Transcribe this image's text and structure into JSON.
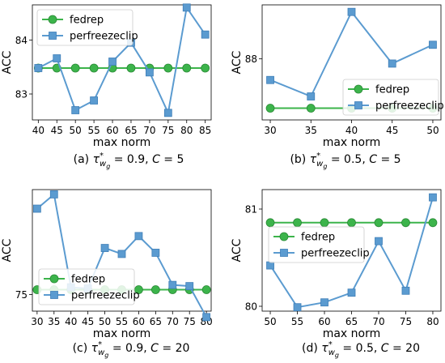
{
  "colors": {
    "fedrep": "#3cb44b",
    "fedrep_edge": "#2a8a36",
    "perfreezeclip": "#5b9bd0",
    "perfreezeclip_edge": "#3f7fb8"
  },
  "chart_data": [
    {
      "type": "line",
      "caption": "(a) τ*_{w_g} = 0.9, C = 5",
      "xlabel": "max norm",
      "ylabel": "ACC",
      "x": [
        40,
        45,
        50,
        55,
        60,
        65,
        70,
        75,
        80,
        85
      ],
      "xticks": [
        "40",
        "45",
        "50",
        "55",
        "60",
        "65",
        "70",
        "75",
        "80",
        "85"
      ],
      "yticks": [
        {
          "value": 83,
          "label": "83"
        },
        {
          "value": 84,
          "label": "84"
        }
      ],
      "ylim": [
        82.52,
        84.65
      ],
      "legend_position": "top-left",
      "series": [
        {
          "name": "fedrep",
          "marker": "circle",
          "values": [
            83.48,
            83.48,
            83.48,
            83.48,
            83.48,
            83.48,
            83.48,
            83.48,
            83.48,
            83.48
          ]
        },
        {
          "name": "perfreezeclip",
          "marker": "square",
          "values": [
            83.48,
            83.66,
            82.7,
            82.88,
            83.6,
            83.95,
            83.4,
            82.65,
            84.6,
            84.1
          ]
        }
      ]
    },
    {
      "type": "line",
      "caption": "(b) τ*_{w_g} = 0.5, C = 5",
      "xlabel": "max norm",
      "ylabel": "ACC",
      "x": [
        30,
        35,
        40,
        45,
        50
      ],
      "xticks": [
        "30",
        "35",
        "40",
        "45",
        "50"
      ],
      "yticks": [
        {
          "value": 88,
          "label": "88"
        }
      ],
      "ylim": [
        86.7,
        89.15
      ],
      "legend_position": "bottom-right",
      "series": [
        {
          "name": "fedrep",
          "marker": "circle",
          "values": [
            86.95,
            86.95,
            86.95,
            86.95,
            86.95
          ]
        },
        {
          "name": "perfreezeclip",
          "marker": "square",
          "values": [
            87.55,
            87.2,
            89.0,
            87.9,
            88.3
          ]
        }
      ]
    },
    {
      "type": "line",
      "caption": "(c) τ*_{w_g} = 0.9, C = 20",
      "xlabel": "max norm",
      "ylabel": "ACC",
      "x": [
        30,
        35,
        40,
        45,
        50,
        55,
        60,
        65,
        70,
        75,
        80
      ],
      "xticks": [
        "30",
        "35",
        "40",
        "45",
        "50",
        "55",
        "60",
        "65",
        "70",
        "75",
        "80"
      ],
      "yticks": [
        {
          "value": 75,
          "label": "75"
        }
      ],
      "ylim": [
        74.3,
        79.4
      ],
      "legend_position": "bottom-left",
      "series": [
        {
          "name": "fedrep",
          "marker": "circle",
          "values": [
            75.2,
            75.2,
            75.2,
            75.2,
            75.2,
            75.2,
            75.2,
            75.2,
            75.2,
            75.2,
            75.2
          ]
        },
        {
          "name": "perfreezeclip",
          "marker": "square",
          "values": [
            78.6,
            79.2,
            75.3,
            75.25,
            76.95,
            76.7,
            77.45,
            76.75,
            75.4,
            75.35,
            74.05
          ]
        }
      ]
    },
    {
      "type": "line",
      "caption": "(d) τ*_{w_g} = 0.5, C = 20",
      "xlabel": "max norm",
      "ylabel": "ACC",
      "x": [
        50,
        55,
        60,
        65,
        70,
        75,
        80
      ],
      "xticks": [
        "50",
        "55",
        "60",
        "65",
        "70",
        "75",
        "80"
      ],
      "yticks": [
        {
          "value": 80,
          "label": "80"
        },
        {
          "value": 81,
          "label": "81"
        }
      ],
      "ylim": [
        79.95,
        81.2
      ],
      "legend_position": "top-left",
      "series": [
        {
          "name": "fedrep",
          "marker": "circle",
          "values": [
            80.86,
            80.86,
            80.86,
            80.86,
            80.86,
            80.86,
            80.86
          ]
        },
        {
          "name": "perfreezeclip",
          "marker": "square",
          "values": [
            80.42,
            79.99,
            80.04,
            80.14,
            80.67,
            80.16,
            81.12
          ]
        }
      ]
    }
  ]
}
